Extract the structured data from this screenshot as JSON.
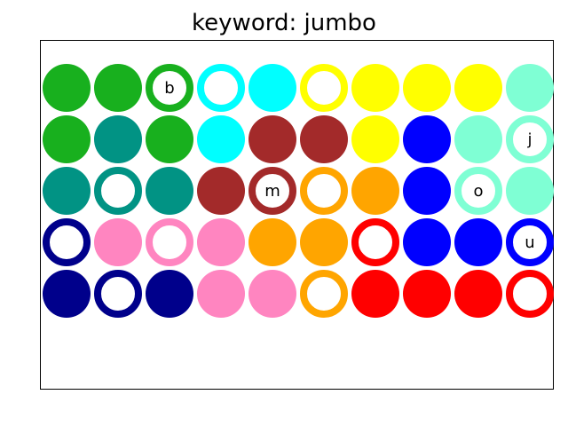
{
  "title": "keyword: jumbo",
  "colors": {
    "green": "#18b01e",
    "teal": "#019384",
    "cyan": "#00ffff",
    "brown": "#a32a2a",
    "yellow": "#ffff00",
    "aqua": "#7fffd4",
    "blue": "#0000ff",
    "orange": "#ffa500",
    "navy": "#00008b",
    "pink": "#ff85c0",
    "red": "#ff0000"
  },
  "grid": [
    [
      {
        "c": "green",
        "ring": false,
        "t": ""
      },
      {
        "c": "green",
        "ring": false,
        "t": ""
      },
      {
        "c": "green",
        "ring": true,
        "t": "b"
      },
      {
        "c": "cyan",
        "ring": true,
        "t": ""
      },
      {
        "c": "cyan",
        "ring": false,
        "t": ""
      },
      {
        "c": "yellow",
        "ring": true,
        "t": ""
      },
      {
        "c": "yellow",
        "ring": false,
        "t": ""
      },
      {
        "c": "yellow",
        "ring": false,
        "t": ""
      },
      {
        "c": "yellow",
        "ring": false,
        "t": ""
      },
      {
        "c": "aqua",
        "ring": false,
        "t": ""
      }
    ],
    [
      {
        "c": "green",
        "ring": false,
        "t": ""
      },
      {
        "c": "teal",
        "ring": false,
        "t": ""
      },
      {
        "c": "green",
        "ring": false,
        "t": ""
      },
      {
        "c": "cyan",
        "ring": false,
        "t": ""
      },
      {
        "c": "brown",
        "ring": false,
        "t": ""
      },
      {
        "c": "brown",
        "ring": false,
        "t": ""
      },
      {
        "c": "yellow",
        "ring": false,
        "t": ""
      },
      {
        "c": "blue",
        "ring": false,
        "t": ""
      },
      {
        "c": "aqua",
        "ring": false,
        "t": ""
      },
      {
        "c": "aqua",
        "ring": true,
        "t": "j"
      }
    ],
    [
      {
        "c": "teal",
        "ring": false,
        "t": ""
      },
      {
        "c": "teal",
        "ring": true,
        "t": ""
      },
      {
        "c": "teal",
        "ring": false,
        "t": ""
      },
      {
        "c": "brown",
        "ring": false,
        "t": ""
      },
      {
        "c": "brown",
        "ring": true,
        "t": "m"
      },
      {
        "c": "orange",
        "ring": true,
        "t": ""
      },
      {
        "c": "orange",
        "ring": false,
        "t": ""
      },
      {
        "c": "blue",
        "ring": false,
        "t": ""
      },
      {
        "c": "aqua",
        "ring": true,
        "t": "o"
      },
      {
        "c": "aqua",
        "ring": false,
        "t": ""
      }
    ],
    [
      {
        "c": "navy",
        "ring": true,
        "t": ""
      },
      {
        "c": "pink",
        "ring": false,
        "t": ""
      },
      {
        "c": "pink",
        "ring": true,
        "t": ""
      },
      {
        "c": "pink",
        "ring": false,
        "t": ""
      },
      {
        "c": "orange",
        "ring": false,
        "t": ""
      },
      {
        "c": "orange",
        "ring": false,
        "t": ""
      },
      {
        "c": "red",
        "ring": true,
        "t": ""
      },
      {
        "c": "blue",
        "ring": false,
        "t": ""
      },
      {
        "c": "blue",
        "ring": false,
        "t": ""
      },
      {
        "c": "blue",
        "ring": true,
        "t": "u"
      }
    ],
    [
      {
        "c": "navy",
        "ring": false,
        "t": ""
      },
      {
        "c": "navy",
        "ring": true,
        "t": ""
      },
      {
        "c": "navy",
        "ring": false,
        "t": ""
      },
      {
        "c": "pink",
        "ring": false,
        "t": ""
      },
      {
        "c": "pink",
        "ring": false,
        "t": ""
      },
      {
        "c": "orange",
        "ring": true,
        "t": ""
      },
      {
        "c": "red",
        "ring": false,
        "t": ""
      },
      {
        "c": "red",
        "ring": false,
        "t": ""
      },
      {
        "c": "red",
        "ring": false,
        "t": ""
      },
      {
        "c": "red",
        "ring": true,
        "t": ""
      }
    ]
  ]
}
